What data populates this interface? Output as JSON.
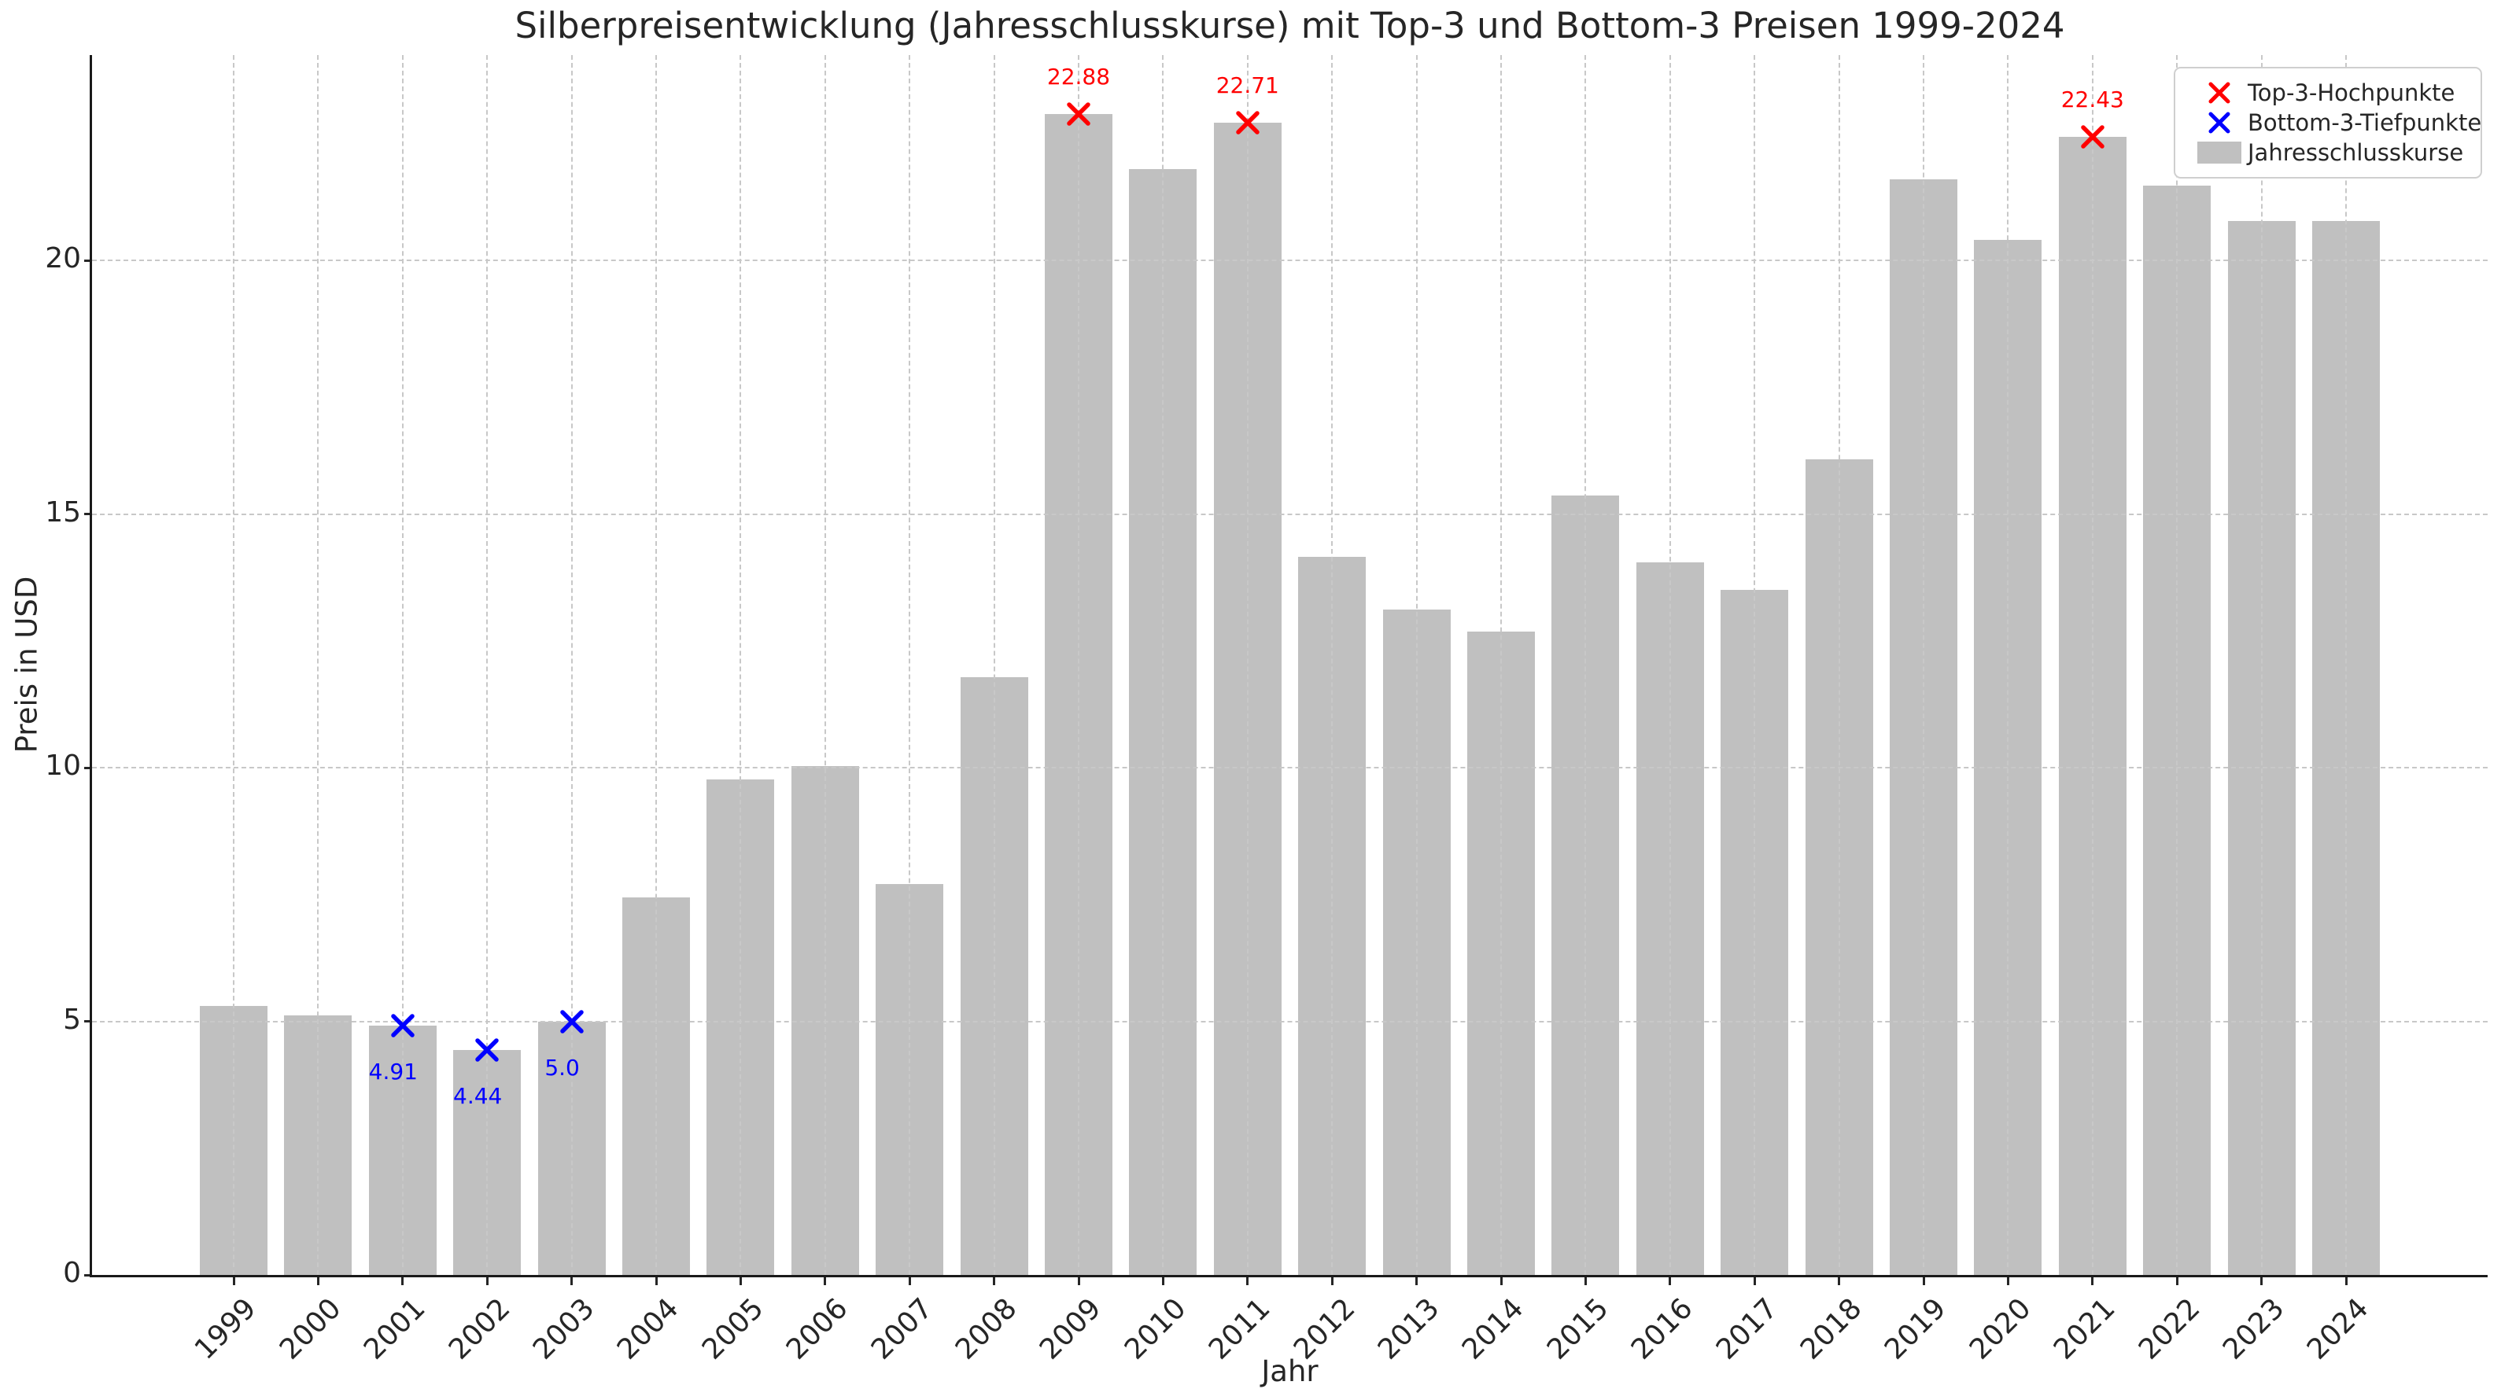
{
  "chart_data": {
    "type": "bar",
    "title": "Silberpreisentwicklung (Jahresschlusskurse) mit Top-3 und Bottom-3 Preisen 1999-2024",
    "xlabel": "Jahr",
    "ylabel": "Preis in USD",
    "categories": [
      "1999",
      "2000",
      "2001",
      "2002",
      "2003",
      "2004",
      "2005",
      "2006",
      "2007",
      "2008",
      "2009",
      "2010",
      "2011",
      "2012",
      "2013",
      "2014",
      "2015",
      "2016",
      "2017",
      "2018",
      "2019",
      "2020",
      "2021",
      "2022",
      "2023",
      "2024"
    ],
    "values": [
      5.3,
      5.11,
      4.91,
      4.44,
      5.0,
      7.44,
      9.77,
      10.03,
      7.71,
      11.78,
      22.88,
      21.8,
      22.71,
      14.15,
      13.12,
      12.68,
      15.37,
      14.05,
      13.5,
      16.07,
      21.6,
      20.4,
      22.43,
      21.48,
      20.77,
      20.77
    ],
    "yticks": [
      0,
      5,
      10,
      15,
      20
    ],
    "ylim": [
      0,
      24.05
    ],
    "grid": "dashed-both-axes-above-bars",
    "legend_position": "top-right",
    "colors": {
      "bars": "#c0c0c0",
      "top3": "#ff0000",
      "bottom3": "#0000ff",
      "grid": "#c8c8c8",
      "spine": "#1a1a1a"
    },
    "legend": {
      "entries": [
        {
          "label": "Top-3-Hochpunkte",
          "marker": "x",
          "color": "#ff0000"
        },
        {
          "label": "Bottom-3-Tiefpunkte",
          "marker": "x",
          "color": "#0000ff"
        },
        {
          "label": "Jahresschlusskurse",
          "marker": "bar",
          "color": "#c0c0c0"
        }
      ]
    },
    "annotations": {
      "top3": [
        {
          "year": "2009",
          "value": 22.88,
          "label": "22.88"
        },
        {
          "year": "2011",
          "value": 22.71,
          "label": "22.71"
        },
        {
          "year": "2021",
          "value": 22.43,
          "label": "22.43"
        }
      ],
      "bottom3": [
        {
          "year": "2001",
          "value": 4.91,
          "label": "4.91"
        },
        {
          "year": "2002",
          "value": 4.44,
          "label": "4.44"
        },
        {
          "year": "2003",
          "value": 5.0,
          "label": "5.0"
        }
      ]
    }
  }
}
